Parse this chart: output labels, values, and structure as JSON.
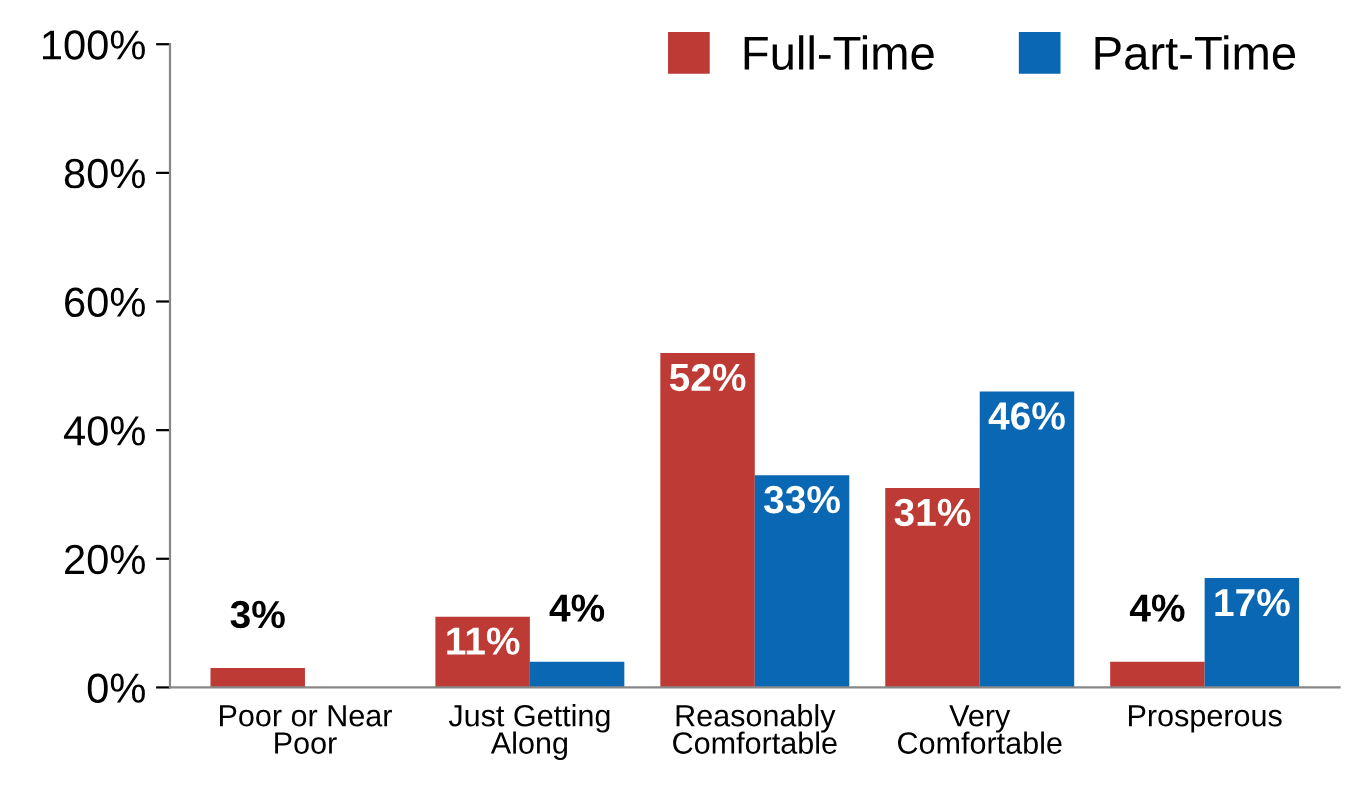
{
  "chart_data": {
    "type": "bar",
    "categories": [
      "Poor or Near\nPoor",
      "Just Getting\nAlong",
      "Reasonably\nComfortable",
      "Very\nComfortable",
      "Prosperous"
    ],
    "series": [
      {
        "name": "Full-Time",
        "color": "#be3a34",
        "values": [
          3,
          11,
          52,
          31,
          4
        ],
        "value_labels": [
          "3%",
          "11%",
          "52%",
          "31%",
          "4%"
        ]
      },
      {
        "name": "Part-Time",
        "color": "#0a67b4",
        "values": [
          null,
          4,
          33,
          46,
          17
        ],
        "value_labels": [
          null,
          "4%",
          "33%",
          "46%",
          "17%"
        ]
      }
    ],
    "ylim": [
      0,
      100
    ],
    "yticks": [
      {
        "value": 0,
        "label": "0%"
      },
      {
        "value": 20,
        "label": "20%"
      },
      {
        "value": 40,
        "label": "40%"
      },
      {
        "value": 60,
        "label": "60%"
      },
      {
        "value": 80,
        "label": "80%"
      },
      {
        "value": 100,
        "label": "100%"
      }
    ],
    "legend": "top right",
    "grid": false
  }
}
